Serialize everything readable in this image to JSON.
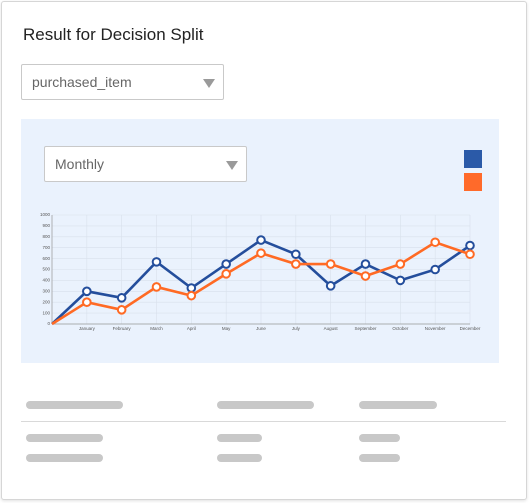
{
  "header": {
    "title": "Result for Decision Split"
  },
  "dropdown": {
    "value": "purchased_item"
  },
  "chart_panel": {
    "dropdown": {
      "value": "Monthly"
    }
  },
  "chart_data": {
    "type": "line",
    "categories": [
      null,
      "January",
      "February",
      "March",
      "April",
      "May",
      "June",
      "July",
      "August",
      "September",
      "October",
      "November",
      "December"
    ],
    "series": [
      {
        "color": "#244e9c",
        "values": [
          0,
          300,
          240,
          570,
          330,
          550,
          770,
          640,
          350,
          550,
          400,
          500,
          720
        ]
      },
      {
        "color": "#ff6a24",
        "values": [
          0,
          200,
          130,
          340,
          260,
          460,
          650,
          550,
          550,
          440,
          550,
          750,
          640
        ]
      }
    ],
    "ylim": [
      0,
      1000
    ],
    "yticks": [
      0,
      100,
      200,
      300,
      400,
      500,
      600,
      700,
      800,
      900,
      1000
    ],
    "grid": true,
    "legend_colors": [
      "#2b5aa8",
      "#ff6a2a"
    ]
  }
}
